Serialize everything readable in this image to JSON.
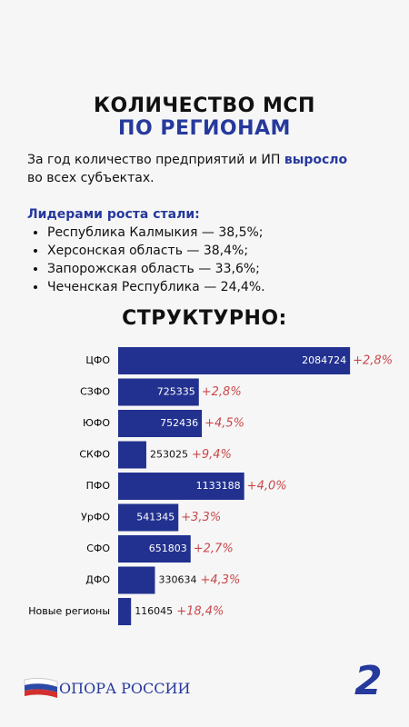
{
  "header": {
    "title": "КОЛИЧЕСТВО МСП",
    "subtitle": "ПО РЕГИОНАМ"
  },
  "intro": {
    "before": "За год количество предприятий и ИП",
    "highlight": "выросло",
    "after": "во всех субъектах."
  },
  "leaders": {
    "title": "Лидерами роста стали:",
    "items": [
      "Республика Калмыкия — 38,5%;",
      "Херсонская область — 38,4%;",
      "Запорожская область — 33,6%;",
      "Чеченская Республика — 24,4%."
    ]
  },
  "chart_data": {
    "type": "hbar",
    "title": "СТРУКТУРНО:",
    "categories": [
      "ЦФО",
      "СЗФО",
      "ЮФО",
      "СКФО",
      "ПФО",
      "УрФО",
      "СФО",
      "ДФО",
      "Новые регионы"
    ],
    "values": [
      2084724,
      725335,
      752436,
      253025,
      1133188,
      541345,
      651803,
      330634,
      116045
    ],
    "color": "#22318f",
    "xlim": [
      0,
      2100000
    ],
    "growth": {
      "values": [
        2.8,
        2.8,
        4.5,
        9.4,
        4.0,
        3.3,
        2.7,
        4.3,
        18.4
      ],
      "value_labels": [
        "+2,8%",
        "+2,8%",
        "+4,5%",
        "+9,4%",
        "+4,0%",
        "+3,3%",
        "+2,7%",
        "+4,3%",
        "+18,4%"
      ],
      "color": "#c9484b"
    }
  },
  "footer": {
    "logo": "ОПОРА РОССИИ",
    "page": "2"
  }
}
